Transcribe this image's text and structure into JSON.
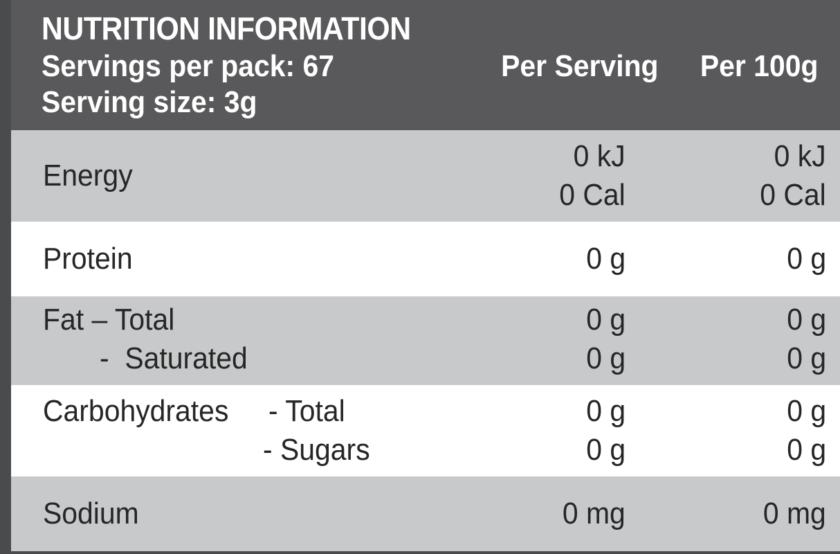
{
  "header": {
    "title": "NUTRITION INFORMATION",
    "servings_per_pack": "Servings per pack: 67",
    "serving_size": "Serving size: 3g",
    "col_per_serving": "Per Serving",
    "col_per_100g": "Per 100g"
  },
  "rows": {
    "energy": {
      "label": "Energy",
      "per_serving_kj": "0 kJ",
      "per_serving_cal": "0 Cal",
      "per_100g_kj": "0 kJ",
      "per_100g_cal": "0 Cal"
    },
    "protein": {
      "label": "Protein",
      "per_serving": "0 g",
      "per_100g": "0 g"
    },
    "fat": {
      "label": "Fat – Total",
      "sub_label": "-  Saturated",
      "per_serving_total": "0 g",
      "per_serving_saturated": "0 g",
      "per_100g_total": "0 g",
      "per_100g_saturated": "0 g"
    },
    "carbohydrates": {
      "label": "Carbohydrates",
      "total_label": "- Total",
      "sugars_label": "- Sugars",
      "per_serving_total": "0 g",
      "per_serving_sugars": "0 g",
      "per_100g_total": "0 g",
      "per_100g_sugars": "0 g"
    },
    "sodium": {
      "label": "Sodium",
      "per_serving": "0 mg",
      "per_100g": "0 mg"
    }
  },
  "colors": {
    "header_bg": "#59595b",
    "frame": "#4a4b4d",
    "grey_row": "#c8c9cb",
    "white_row": "#ffffff",
    "text": "#262626"
  }
}
